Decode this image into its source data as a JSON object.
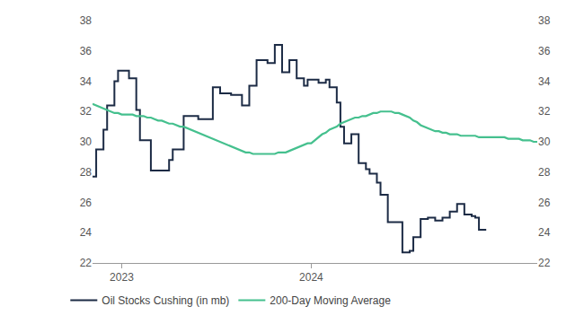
{
  "chart_data": {
    "type": "line",
    "categories": [
      null,
      null,
      null,
      null,
      null,
      null,
      null,
      null,
      "2023",
      null,
      null,
      null,
      null,
      null,
      null,
      null,
      null,
      null,
      null,
      null,
      null,
      null,
      null,
      null,
      null,
      null,
      null,
      null,
      null,
      null,
      null,
      null,
      null,
      null,
      null,
      null,
      null,
      null,
      null,
      null,
      null,
      null,
      null,
      null,
      null,
      null,
      null,
      null,
      null,
      null,
      null,
      null,
      null,
      null,
      null,
      null,
      null,
      null,
      null,
      null,
      "2024",
      null,
      null,
      null,
      null,
      null,
      null,
      null,
      null,
      null,
      null,
      null,
      null,
      null,
      null,
      null,
      null,
      null,
      null,
      null,
      null,
      null,
      null,
      null,
      null,
      null,
      null,
      null,
      null,
      null,
      null,
      null,
      null,
      null,
      null,
      null,
      null,
      null,
      null,
      null,
      null,
      null,
      null,
      null,
      null,
      null,
      null,
      null,
      null,
      null,
      null,
      null,
      null,
      null,
      null,
      null,
      null,
      null,
      null,
      null,
      null,
      null,
      null
    ],
    "series": [
      {
        "name": "Oil Stocks Cushing (in mb)",
        "color": "#1c2b45",
        "line_style": "step",
        "values": [
          27.7,
          29.5,
          29.5,
          30.8,
          32.4,
          32.4,
          34.0,
          34.7,
          34.7,
          34.7,
          34.2,
          34.2,
          32.1,
          30.1,
          30.1,
          30.1,
          28.1,
          28.1,
          28.1,
          28.1,
          28.1,
          28.8,
          29.5,
          29.5,
          29.5,
          31.7,
          31.7,
          31.7,
          31.7,
          31.5,
          31.5,
          31.5,
          31.5,
          33.6,
          33.6,
          33.2,
          33.2,
          33.2,
          33.1,
          33.1,
          33.1,
          32.4,
          32.4,
          33.7,
          33.7,
          35.4,
          35.4,
          35.4,
          35.2,
          35.2,
          36.4,
          36.4,
          34.6,
          34.6,
          35.4,
          35.4,
          34.2,
          34.2,
          33.7,
          34.1,
          34.1,
          34.1,
          33.9,
          33.9,
          34.1,
          33.6,
          33.6,
          32.6,
          31.0,
          29.9,
          29.9,
          30.5,
          30.5,
          28.6,
          28.6,
          28.2,
          27.9,
          27.9,
          27.3,
          26.5,
          26.5,
          24.7,
          24.7,
          24.7,
          24.7,
          22.7,
          22.7,
          22.8,
          23.7,
          23.7,
          24.9,
          24.9,
          25.0,
          25.0,
          24.8,
          24.8,
          25.0,
          25.0,
          25.4,
          25.4,
          25.9,
          25.9,
          25.2,
          25.2,
          25.1,
          25.0,
          24.2,
          24.2,
          24.2,
          null,
          null,
          null,
          null,
          null,
          null,
          null,
          null,
          null,
          null,
          null,
          null,
          null,
          null
        ]
      },
      {
        "name": "200-Day Moving Average",
        "color": "#45c08e",
        "line_style": "solid",
        "values": [
          32.5,
          32.4,
          32.3,
          32.2,
          32.1,
          32.0,
          31.9,
          31.9,
          31.8,
          31.8,
          31.8,
          31.8,
          31.7,
          31.7,
          31.7,
          31.6,
          31.6,
          31.5,
          31.4,
          31.4,
          31.3,
          31.2,
          31.2,
          31.1,
          31.0,
          31.0,
          30.9,
          30.8,
          30.7,
          30.6,
          30.5,
          30.4,
          30.3,
          30.2,
          30.1,
          30.0,
          29.9,
          29.8,
          29.7,
          29.6,
          29.5,
          29.4,
          29.3,
          29.3,
          29.2,
          29.2,
          29.2,
          29.2,
          29.2,
          29.2,
          29.2,
          29.3,
          29.3,
          29.3,
          29.4,
          29.5,
          29.6,
          29.7,
          29.8,
          29.9,
          29.9,
          30.1,
          30.3,
          30.5,
          30.6,
          30.8,
          30.9,
          31.0,
          31.2,
          31.3,
          31.4,
          31.5,
          31.6,
          31.6,
          31.7,
          31.7,
          31.8,
          31.9,
          31.9,
          32.0,
          32.0,
          32.0,
          32.0,
          31.9,
          31.9,
          31.8,
          31.7,
          31.6,
          31.4,
          31.3,
          31.1,
          31.0,
          30.9,
          30.8,
          30.7,
          30.7,
          30.6,
          30.6,
          30.5,
          30.5,
          30.5,
          30.4,
          30.4,
          30.4,
          30.4,
          30.4,
          30.3,
          30.3,
          30.3,
          30.3,
          30.3,
          30.3,
          30.3,
          30.3,
          30.2,
          30.2,
          30.2,
          30.2,
          30.1,
          30.1,
          30.1,
          30.0,
          30.0
        ]
      }
    ],
    "ylim": [
      22,
      38
    ],
    "yticks": [
      22,
      24,
      26,
      28,
      30,
      32,
      34,
      36,
      38
    ],
    "grid": false,
    "legend": "bottom"
  }
}
